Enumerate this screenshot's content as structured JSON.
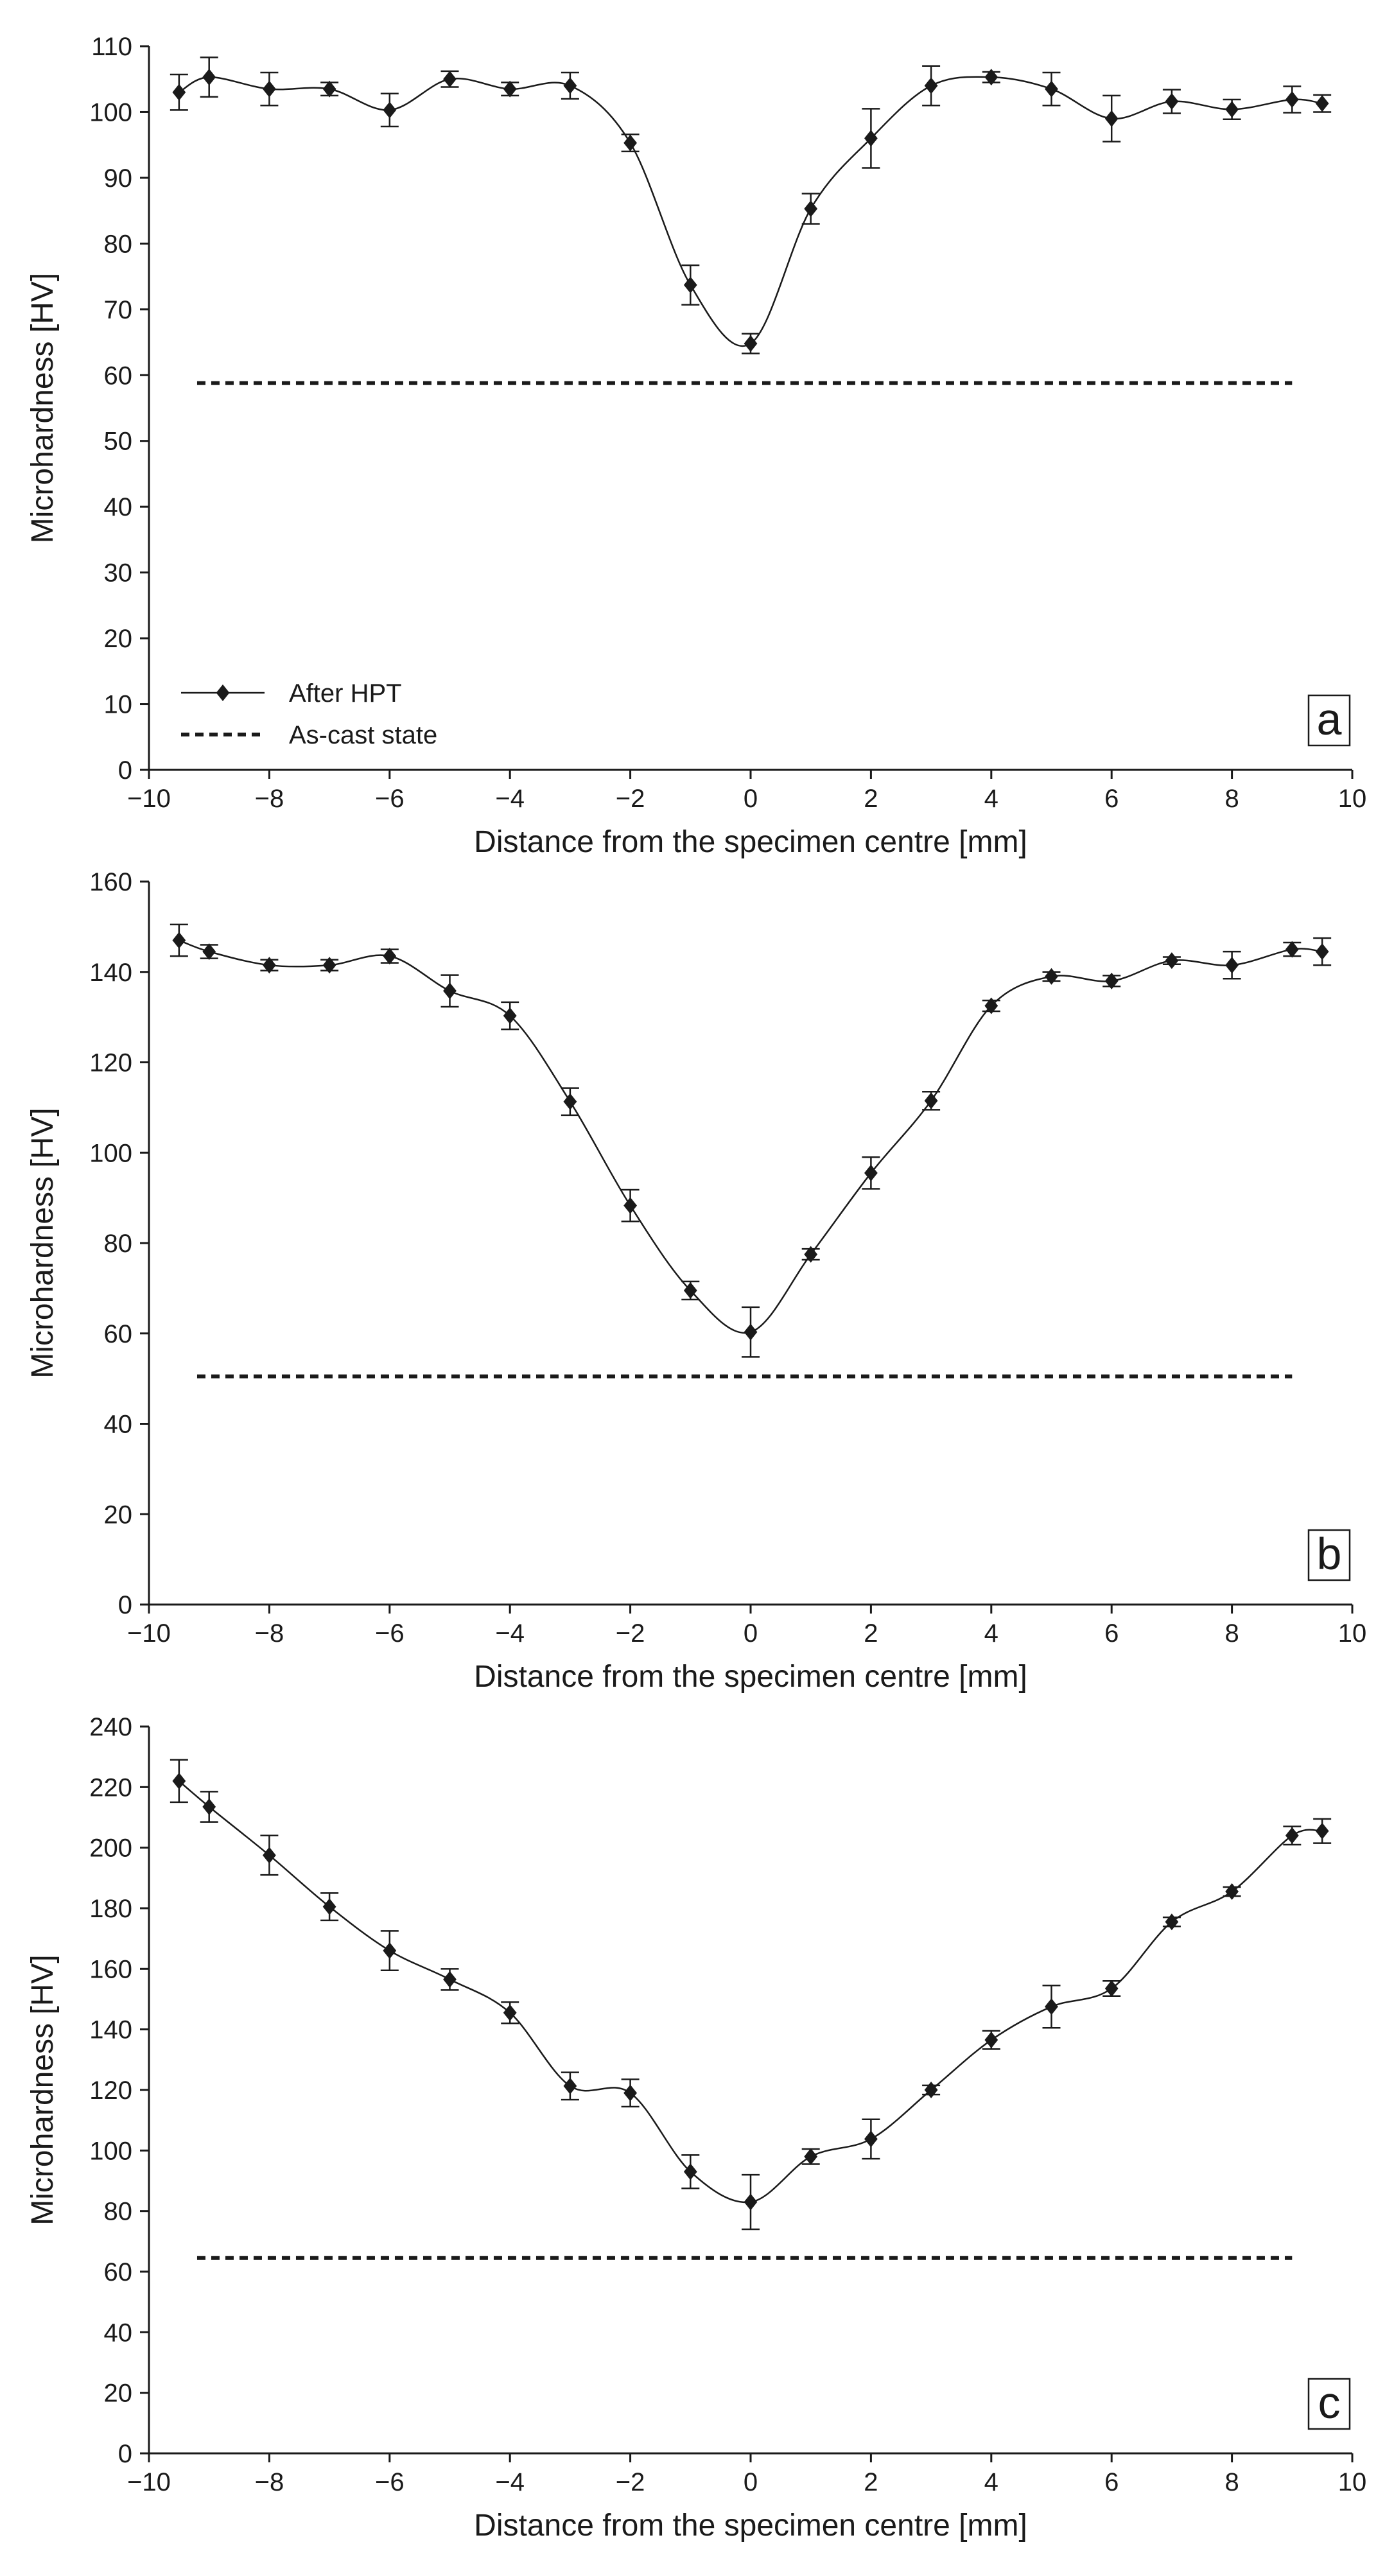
{
  "chart_data": [
    {
      "type": "line",
      "panel_label": "a",
      "xlabel": "Distance from the specimen centre [mm]",
      "ylabel": "Microhardness [HV]",
      "xlim": [
        -10,
        10
      ],
      "ylim": [
        0,
        110
      ],
      "xticks": [
        -10,
        -8,
        -6,
        -4,
        -2,
        0,
        2,
        4,
        6,
        8,
        10
      ],
      "xtick_labels": [
        "−10",
        "−8",
        "−6",
        "−4",
        "−2",
        "0",
        "2",
        "4",
        "6",
        "8",
        "10"
      ],
      "yticks": [
        0,
        10,
        20,
        30,
        40,
        50,
        60,
        70,
        80,
        90,
        100,
        110
      ],
      "ytick_labels": [
        "0",
        "10",
        "20",
        "30",
        "40",
        "50",
        "60",
        "70",
        "80",
        "90",
        "100",
        "110"
      ],
      "legend": {
        "position": "bottom-left",
        "entries": [
          "After HPT",
          "As-cast state"
        ]
      },
      "series": [
        {
          "name": "After HPT",
          "x": [
            -9.5,
            -9,
            -8,
            -7,
            -6,
            -5,
            -4,
            -3,
            -2,
            -1,
            0,
            1,
            2,
            3,
            4,
            5,
            6,
            7,
            8,
            9,
            9.5
          ],
          "y": [
            103,
            105.3,
            103.5,
            103.5,
            100.3,
            105,
            103.5,
            104,
            95.3,
            73.7,
            64.8,
            85.3,
            96,
            104,
            105.3,
            103.5,
            99,
            101.6,
            100.4,
            101.9,
            101.3
          ],
          "err": [
            2.7,
            3,
            2.5,
            1,
            2.5,
            1.2,
            1,
            2,
            1.3,
            3,
            1.5,
            2.3,
            4.5,
            3,
            0.8,
            2.5,
            3.5,
            1.8,
            1.5,
            2,
            1.3
          ]
        },
        {
          "name": "As-cast state",
          "x": [
            -9.2,
            9.0
          ],
          "y": [
            58.8,
            58.8
          ]
        }
      ]
    },
    {
      "type": "line",
      "panel_label": "b",
      "xlabel": "Distance from the specimen centre [mm]",
      "ylabel": "Microhardness [HV]",
      "xlim": [
        -10,
        10
      ],
      "ylim": [
        0,
        160
      ],
      "xticks": [
        -10,
        -8,
        -6,
        -4,
        -2,
        0,
        2,
        4,
        6,
        8,
        10
      ],
      "xtick_labels": [
        "−10",
        "−8",
        "−6",
        "−4",
        "−2",
        "0",
        "2",
        "4",
        "6",
        "8",
        "10"
      ],
      "yticks": [
        0,
        20,
        40,
        60,
        80,
        100,
        120,
        140,
        160
      ],
      "ytick_labels": [
        "0",
        "20",
        "40",
        "60",
        "80",
        "100",
        "120",
        "140",
        "160"
      ],
      "series": [
        {
          "name": "After HPT",
          "x": [
            -9.5,
            -9,
            -8,
            -7,
            -6,
            -5,
            -4,
            -3,
            -2,
            -1,
            0,
            1,
            2,
            3,
            4,
            5,
            6,
            7,
            8,
            9,
            9.5
          ],
          "y": [
            147,
            144.5,
            141.5,
            141.5,
            143.5,
            135.8,
            130.3,
            111.3,
            88.3,
            69.5,
            60.3,
            77.5,
            95.5,
            111.5,
            132.5,
            139,
            138,
            142.5,
            141.5,
            145,
            144.5
          ],
          "err": [
            3.5,
            1.5,
            1.2,
            1.2,
            1.5,
            3.5,
            3,
            3,
            3.5,
            2,
            5.5,
            1.2,
            3.5,
            2,
            1.2,
            1,
            1.2,
            0.8,
            3,
            1.5,
            3
          ]
        },
        {
          "name": "As-cast state",
          "x": [
            -9.2,
            9.0
          ],
          "y": [
            50.5,
            50.5
          ]
        }
      ]
    },
    {
      "type": "line",
      "panel_label": "c",
      "xlabel": "Distance from the specimen centre [mm]",
      "ylabel": "Microhardness [HV]",
      "xlim": [
        -10,
        10
      ],
      "ylim": [
        0,
        240
      ],
      "xticks": [
        -10,
        -8,
        -6,
        -4,
        -2,
        0,
        2,
        4,
        6,
        8,
        10
      ],
      "xtick_labels": [
        "−10",
        "−8",
        "−6",
        "−4",
        "−2",
        "0",
        "2",
        "4",
        "6",
        "8",
        "10"
      ],
      "yticks": [
        0,
        20,
        40,
        60,
        80,
        100,
        120,
        140,
        160,
        180,
        200,
        220,
        240
      ],
      "ytick_labels": [
        "0",
        "20",
        "40",
        "60",
        "80",
        "100",
        "120",
        "140",
        "160",
        "180",
        "200",
        "220",
        "240"
      ],
      "series": [
        {
          "name": "After HPT",
          "x": [
            -9.5,
            -9,
            -8,
            -7,
            -6,
            -5,
            -4,
            -3,
            -2,
            -1,
            0,
            1,
            2,
            3,
            4,
            5,
            6,
            7,
            8,
            9,
            9.5
          ],
          "y": [
            222,
            213.5,
            197.5,
            180.5,
            166,
            156.5,
            145.5,
            121.3,
            119,
            93,
            83,
            98,
            103.8,
            120,
            136.5,
            147.5,
            153.5,
            175.5,
            185.5,
            204,
            205.5
          ],
          "err": [
            7,
            5,
            6.5,
            4.5,
            6.5,
            3.5,
            3.5,
            4.5,
            4.5,
            5.5,
            9,
            2.5,
            6.5,
            1.5,
            3,
            7,
            2.5,
            1.5,
            1.5,
            3,
            4
          ]
        },
        {
          "name": "As-cast state",
          "x": [
            -9.2,
            9.0
          ],
          "y": [
            64.5,
            64.5
          ]
        }
      ]
    }
  ]
}
